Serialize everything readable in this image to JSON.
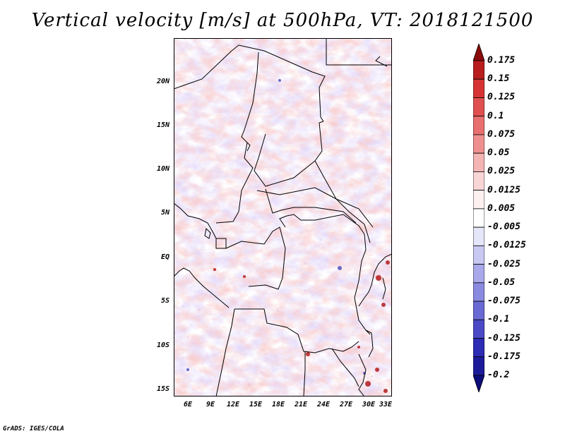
{
  "title": "Vertical velocity [m/s] at 500hPa, VT: 2018121500",
  "credit": "GrADS: IGES/COLA",
  "axes": {
    "lon_labels": [
      "6E",
      "9E",
      "12E",
      "15E",
      "18E",
      "21E",
      "24E",
      "27E",
      "30E",
      "33E"
    ],
    "lat_labels": [
      "20N",
      "15N",
      "10N",
      "5N",
      "EQ",
      "5S",
      "10S",
      "15S"
    ]
  },
  "colorbar": {
    "labels": [
      "0.175",
      "0.15",
      "0.125",
      "0.1",
      "0.075",
      "0.05",
      "0.025",
      "0.0125",
      "0.005",
      "-0.005",
      "-0.0125",
      "-0.025",
      "-0.05",
      "-0.075",
      "-0.1",
      "-0.125",
      "-0.175",
      "-0.2"
    ],
    "colors": [
      "#8b0a0a",
      "#b81e1e",
      "#d63434",
      "#e05050",
      "#e87070",
      "#ef9090",
      "#f4b4b4",
      "#f9d6d6",
      "#fdf0f0",
      "#ffffff",
      "#e6e6fa",
      "#c8c8f2",
      "#a8a8ea",
      "#8a8ae0",
      "#6a6ad4",
      "#4a4ac6",
      "#2c2cb4",
      "#1c1c9a",
      "#0c0c7a"
    ]
  }
}
